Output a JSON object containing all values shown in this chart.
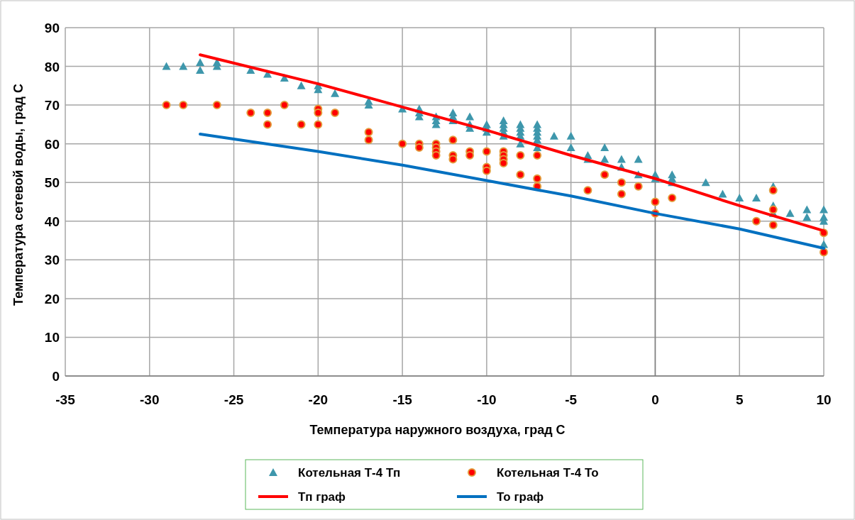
{
  "chart_data": {
    "type": "scatter",
    "xlabel": "Температура наружного воздуха, град С",
    "ylabel": "Температура сетевой воды, град С",
    "xlim": [
      -35,
      10
    ],
    "xticks": [
      -35,
      -30,
      -25,
      -20,
      -15,
      -10,
      -5,
      0,
      5,
      10
    ],
    "ylim": [
      0,
      90
    ],
    "yticks": [
      0,
      10,
      20,
      30,
      40,
      50,
      60,
      70,
      80,
      90
    ],
    "grid": true,
    "legend": "bottom",
    "series": [
      {
        "name": "Котельная Т-4 Тп",
        "type": "scatter",
        "marker": "triangle",
        "color": "#3e97ac",
        "x": [
          -29,
          -28,
          -27,
          -27,
          -26,
          -26,
          -24,
          -23,
          -22,
          -21,
          -20,
          -20,
          -19,
          -17,
          -17,
          -15,
          -14,
          -14,
          -14,
          -13,
          -13,
          -13,
          -12,
          -12,
          -12,
          -11,
          -11,
          -11,
          -10,
          -10,
          -10,
          -9,
          -9,
          -9,
          -9,
          -9,
          -8,
          -8,
          -8,
          -8,
          -8,
          -7,
          -7,
          -7,
          -7,
          -7,
          -7,
          -6,
          -5,
          -5,
          -4,
          -4,
          -3,
          -3,
          -2,
          -2,
          -1,
          -1,
          0,
          0,
          1,
          1,
          1,
          3,
          4,
          5,
          6,
          7,
          7,
          7,
          8,
          9,
          9,
          10,
          10,
          10,
          10
        ],
        "values": [
          80,
          80,
          81,
          79,
          81,
          80,
          79,
          78,
          77,
          75,
          75,
          74,
          73,
          71,
          70,
          69,
          69,
          68,
          67,
          67,
          66,
          65,
          68,
          67,
          66,
          67,
          65,
          64,
          65,
          64,
          63,
          66,
          65,
          64,
          63,
          62,
          65,
          64,
          63,
          62,
          60,
          65,
          64,
          63,
          62,
          61,
          59,
          62,
          62,
          59,
          57,
          56,
          59,
          56,
          56,
          54,
          56,
          52,
          52,
          51,
          52,
          51,
          50,
          50,
          47,
          46,
          46,
          49,
          44,
          42,
          42,
          43,
          41,
          43,
          41,
          40,
          34
        ]
      },
      {
        "name": "Котельная Т-4 То",
        "type": "scatter",
        "marker": "circle",
        "color": "#ff0000",
        "x": [
          -29,
          -28,
          -26,
          -24,
          -23,
          -23,
          -22,
          -21,
          -20,
          -20,
          -20,
          -19,
          -17,
          -17,
          -15,
          -14,
          -14,
          -13,
          -13,
          -13,
          -13,
          -12,
          -12,
          -12,
          -11,
          -11,
          -10,
          -10,
          -10,
          -9,
          -9,
          -9,
          -9,
          -8,
          -8,
          -7,
          -7,
          -7,
          -4,
          -3,
          -2,
          -2,
          -1,
          0,
          0,
          1,
          6,
          7,
          7,
          7,
          10,
          10
        ],
        "values": [
          70,
          70,
          70,
          68,
          68,
          65,
          70,
          65,
          69,
          68,
          65,
          68,
          63,
          61,
          60,
          60,
          59,
          60,
          59,
          58,
          57,
          61,
          57,
          56,
          58,
          57,
          58,
          54,
          53,
          58,
          57,
          56,
          55,
          57,
          52,
          57,
          51,
          49,
          48,
          52,
          50,
          47,
          49,
          45,
          42,
          46,
          40,
          48,
          43,
          39,
          37,
          32
        ]
      },
      {
        "name": "Тп граф",
        "type": "line",
        "color": "#ff0000",
        "x": [
          -27,
          -20,
          -15,
          -10,
          -5,
          0,
          5,
          10
        ],
        "values": [
          83,
          75.5,
          69.5,
          63.5,
          57,
          51,
          44,
          37.5
        ]
      },
      {
        "name": "То граф",
        "type": "line",
        "color": "#0070c0",
        "x": [
          -27,
          -20,
          -15,
          -10,
          -5,
          0,
          5,
          10
        ],
        "values": [
          62.5,
          58,
          54.5,
          50.5,
          46.5,
          42,
          38,
          33
        ]
      }
    ]
  }
}
